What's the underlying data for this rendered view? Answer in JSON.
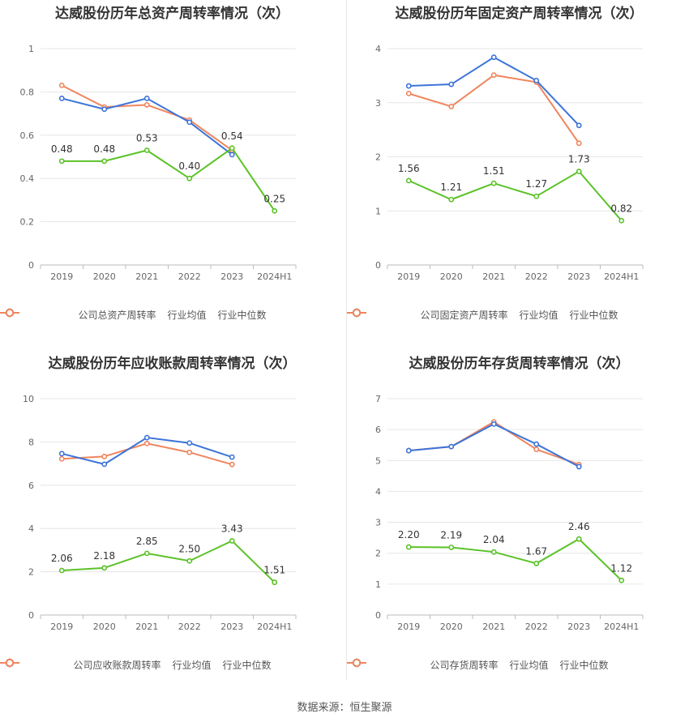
{
  "source_prefix": "数据来源：",
  "source_name": "恒生聚源",
  "colors": {
    "company": "#5bc228",
    "avg": "#3c74d9",
    "median": "#f0855d"
  },
  "chart_data": [
    {
      "type": "line",
      "title": "达威股份历年总资产周转率情况（次）",
      "categories": [
        "2019",
        "2020",
        "2021",
        "2022",
        "2023",
        "2024H1"
      ],
      "ylim": [
        0,
        1
      ],
      "yticks": [
        "0",
        "0.2",
        "0.4",
        "0.6",
        "0.8",
        "1"
      ],
      "series": [
        {
          "name": "公司总资产周转率",
          "values": [
            0.48,
            0.48,
            0.53,
            0.4,
            0.54,
            0.25
          ],
          "labels": [
            "0.48",
            "0.48",
            "0.53",
            "0.40",
            "0.54",
            "0.25"
          ]
        },
        {
          "name": "行业均值",
          "values": [
            0.77,
            0.72,
            0.77,
            0.66,
            0.51,
            null
          ]
        },
        {
          "name": "行业中位数",
          "values": [
            0.83,
            0.73,
            0.74,
            0.67,
            0.53,
            null
          ]
        }
      ]
    },
    {
      "type": "line",
      "title": "达威股份历年固定资产周转率情况（次）",
      "categories": [
        "2019",
        "2020",
        "2021",
        "2022",
        "2023",
        "2024H1"
      ],
      "ylim": [
        0,
        4
      ],
      "yticks": [
        "0",
        "1",
        "2",
        "3",
        "4"
      ],
      "series": [
        {
          "name": "公司固定资产周转率",
          "values": [
            1.56,
            1.21,
            1.51,
            1.27,
            1.73,
            0.82
          ],
          "labels": [
            "1.56",
            "1.21",
            "1.51",
            "1.27",
            "1.73",
            "0.82"
          ]
        },
        {
          "name": "行业均值",
          "values": [
            3.31,
            3.34,
            3.84,
            3.41,
            2.58,
            null
          ]
        },
        {
          "name": "行业中位数",
          "values": [
            3.17,
            2.93,
            3.51,
            3.38,
            2.25,
            null
          ]
        }
      ]
    },
    {
      "type": "line",
      "title": "达威股份历年应收账款周转率情况（次）",
      "categories": [
        "2019",
        "2020",
        "2021",
        "2022",
        "2023",
        "2024H1"
      ],
      "ylim": [
        0,
        10
      ],
      "yticks": [
        "0",
        "2",
        "4",
        "6",
        "8",
        "10"
      ],
      "series": [
        {
          "name": "公司应收账款周转率",
          "values": [
            2.06,
            2.18,
            2.85,
            2.5,
            3.43,
            1.51
          ],
          "labels": [
            "2.06",
            "2.18",
            "2.85",
            "2.50",
            "3.43",
            "1.51"
          ]
        },
        {
          "name": "行业均值",
          "values": [
            7.46,
            6.97,
            8.2,
            7.95,
            7.3,
            null
          ]
        },
        {
          "name": "行业中位数",
          "values": [
            7.22,
            7.33,
            7.93,
            7.52,
            6.96,
            null
          ]
        }
      ]
    },
    {
      "type": "line",
      "title": "达威股份历年存货周转率情况（次）",
      "categories": [
        "2019",
        "2020",
        "2021",
        "2022",
        "2023",
        "2024H1"
      ],
      "ylim": [
        0,
        7
      ],
      "yticks": [
        "0",
        "1",
        "2",
        "3",
        "4",
        "5",
        "6",
        "7"
      ],
      "series": [
        {
          "name": "公司存货周转率",
          "values": [
            2.2,
            2.19,
            2.04,
            1.67,
            2.46,
            1.12
          ],
          "labels": [
            "2.20",
            "2.19",
            "2.04",
            "1.67",
            "2.46",
            "1.12"
          ]
        },
        {
          "name": "行业均值",
          "values": [
            5.32,
            5.45,
            6.18,
            5.53,
            4.8,
            null
          ]
        },
        {
          "name": "行业中位数",
          "values": [
            5.32,
            5.45,
            6.25,
            5.36,
            4.87,
            null
          ]
        }
      ]
    }
  ]
}
